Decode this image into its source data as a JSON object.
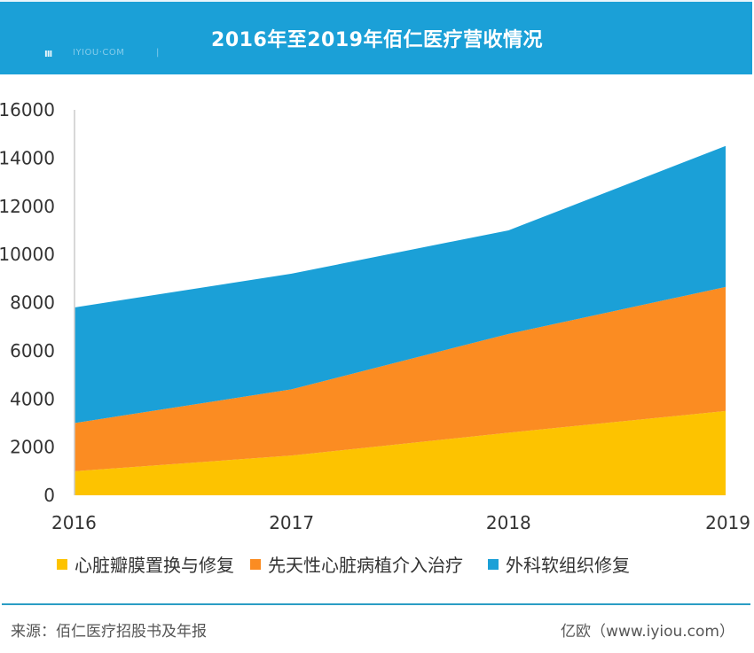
{
  "header": {
    "title": "2016年至2019年佰仁医疗营收情况",
    "logo_mark": "III",
    "logo_text": "IYIOU·COM",
    "logo_bar": "|"
  },
  "footer": {
    "source": "来源：佰仁医疗招股书及年报",
    "brand": "亿欧（www.iyiou.com）"
  },
  "colors": {
    "header_bg": "#1ba0d7",
    "series_yellow": "#fdc300",
    "series_orange": "#fb8c22",
    "series_blue": "#1ba0d7",
    "footer_line": "#2a9dc4"
  },
  "chart_data": {
    "type": "area",
    "stacked": true,
    "title": "2016年至2019年佰仁医疗营收情况",
    "xlabel": "",
    "ylabel": "",
    "categories": [
      "2016",
      "2017",
      "2018",
      "2019"
    ],
    "ylim": [
      0,
      16000
    ],
    "yticks": [
      "0",
      "2000",
      "4000",
      "6000",
      "8000",
      "10000",
      "12000",
      "14000",
      "16000"
    ],
    "grid": false,
    "legend_position": "bottom",
    "series": [
      {
        "name": "心脏瓣膜置换与修复",
        "color": "#fdc300",
        "values": [
          1000,
          1650,
          2600,
          3500
        ]
      },
      {
        "name": "先天性心脏病植介入治疗",
        "color": "#fb8c22",
        "values": [
          2000,
          2750,
          4100,
          5150
        ]
      },
      {
        "name": "外科软组织修复",
        "color": "#1ba0d7",
        "values": [
          4800,
          4800,
          4300,
          5850
        ]
      }
    ]
  }
}
